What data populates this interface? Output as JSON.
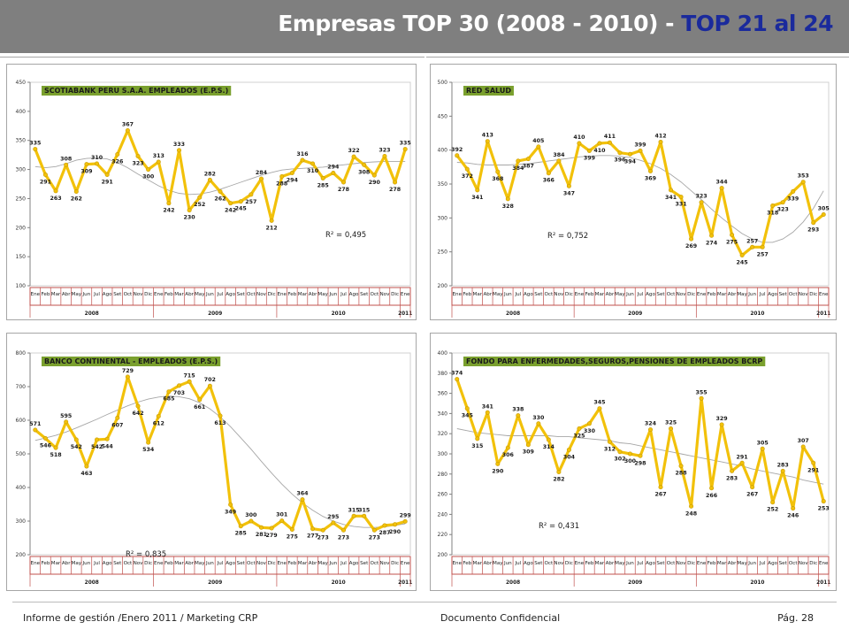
{
  "header": {
    "title_main": "Empresas TOP 30 (2008 - 2010) - ",
    "title_highlight": "TOP 21 al 24"
  },
  "footer": {
    "left": "Informe de gestión /Enero 2011 / Marketing CRP",
    "center": "Documento Confidencial",
    "right": "Pág. 28"
  },
  "colors": {
    "header_bg": "#7f7f7f",
    "title_highlight": "#1a2a9c",
    "line": "#f2c10a",
    "label_box": "#7aa02e",
    "month_axis": "#c0504d",
    "trend": "#a6a6a6"
  },
  "chart_data": [
    {
      "type": "line",
      "title": "SCOTIABANK PERU S.A.A. EMPLEADOS (E.P.S.)",
      "categories": [
        "Ene",
        "Feb",
        "Mar",
        "Abr",
        "May",
        "Jun",
        "Jul",
        "Ago",
        "Set",
        "Oct",
        "Nov",
        "Dic",
        "Ene",
        "Feb",
        "Mar",
        "Abr",
        "May",
        "Jun",
        "Jul",
        "Ago",
        "Set",
        "Oct",
        "Nov",
        "Dic",
        "Ene",
        "Feb",
        "Mar",
        "Abr",
        "May",
        "Jun",
        "Jul",
        "Ago",
        "Set",
        "Oct",
        "Nov",
        "Dic",
        "Ene"
      ],
      "groups": [
        {
          "label": "2008",
          "span": 12
        },
        {
          "label": "2009",
          "span": 12
        },
        {
          "label": "2010",
          "span": 12
        },
        {
          "label": "2011",
          "span": 1
        }
      ],
      "values": [
        335,
        291,
        263,
        308,
        262,
        309,
        310,
        291,
        326,
        367,
        323,
        300,
        313,
        242,
        333,
        230,
        252,
        282,
        262,
        242,
        245,
        257,
        284,
        212,
        288,
        294,
        316,
        310,
        285,
        294,
        278,
        322,
        308,
        290,
        323,
        278,
        335
      ],
      "ylim": [
        100,
        450
      ],
      "yticks": [
        100,
        150,
        200,
        250,
        300,
        350,
        400,
        450
      ],
      "r2": "R² = 0,495",
      "trend": [
        305,
        303,
        305,
        310,
        316,
        319,
        320,
        318,
        312,
        303,
        292,
        282,
        272,
        264,
        259,
        257,
        258,
        261,
        266,
        272,
        278,
        284,
        290,
        295,
        299,
        301,
        302,
        303,
        304,
        306,
        308,
        310,
        312,
        313,
        314,
        314,
        314
      ]
    },
    {
      "type": "line",
      "title": "RED SALUD",
      "categories": [
        "Ene",
        "Feb",
        "Mar",
        "Abr",
        "May",
        "Jun",
        "Jul",
        "Ago",
        "Set",
        "Oct",
        "Nov",
        "Dic",
        "Ene",
        "Feb",
        "Mar",
        "Abr",
        "May",
        "Jun",
        "Jul",
        "Ago",
        "Set",
        "Oct",
        "Nov",
        "Dic",
        "Ene",
        "Feb",
        "Mar",
        "Abr",
        "May",
        "Jun",
        "Jul",
        "Ago",
        "Set",
        "Oct",
        "Nov",
        "Dic",
        "Ene"
      ],
      "groups": [
        {
          "label": "2008",
          "span": 12
        },
        {
          "label": "2009",
          "span": 12
        },
        {
          "label": "2010",
          "span": 12
        },
        {
          "label": "2011",
          "span": 1
        }
      ],
      "values": [
        392,
        372,
        341,
        413,
        368,
        328,
        384,
        387,
        405,
        366,
        384,
        347,
        410,
        399,
        410,
        411,
        396,
        394,
        399,
        369,
        412,
        341,
        331,
        269,
        323,
        274,
        344,
        275,
        245,
        257,
        257,
        318,
        323,
        339,
        353,
        293,
        305
      ],
      "ylim": [
        200,
        500
      ],
      "yticks": [
        200,
        250,
        300,
        350,
        400,
        450,
        500
      ],
      "r2": "R² = 0,752",
      "trend": [
        382,
        381,
        379,
        378,
        378,
        378,
        379,
        380,
        382,
        384,
        386,
        388,
        390,
        391,
        392,
        392,
        391,
        389,
        385,
        380,
        373,
        364,
        353,
        340,
        327,
        313,
        300,
        288,
        277,
        269,
        264,
        264,
        269,
        279,
        294,
        314,
        340
      ]
    },
    {
      "type": "line",
      "title": "BANCO CONTINENTAL - EMPLEADOS (E.P.S.)",
      "categories": [
        "Ene",
        "Feb",
        "Mar",
        "Abr",
        "May",
        "Jun",
        "Jul",
        "Ago",
        "Set",
        "Oct",
        "Nov",
        "Dic",
        "Ene",
        "Feb",
        "Mar",
        "Abr",
        "May",
        "Jun",
        "Jul",
        "Ago",
        "Set",
        "Oct",
        "Nov",
        "Dic",
        "Ene",
        "Feb",
        "Mar",
        "Abr",
        "May",
        "Jun",
        "Jul",
        "Ago",
        "Set",
        "Oct",
        "Nov",
        "Dic",
        "Ene"
      ],
      "groups": [
        {
          "label": "2008",
          "span": 12
        },
        {
          "label": "2009",
          "span": 12
        },
        {
          "label": "2010",
          "span": 12
        },
        {
          "label": "2011",
          "span": 1
        }
      ],
      "values": [
        571,
        546,
        518,
        595,
        542,
        463,
        542,
        544,
        607,
        729,
        642,
        534,
        612,
        685,
        703,
        715,
        661,
        702,
        613,
        349,
        285,
        300,
        281,
        279,
        301,
        275,
        364,
        277,
        273,
        295,
        273,
        315,
        315,
        273,
        287,
        290,
        299
      ],
      "ylim": [
        200,
        800
      ],
      "yticks": [
        200,
        300,
        400,
        500,
        600,
        700,
        800
      ],
      "r2": "R² = 0,835",
      "trend": [
        540,
        547,
        555,
        565,
        577,
        590,
        603,
        617,
        630,
        643,
        654,
        663,
        669,
        672,
        670,
        664,
        652,
        634,
        610,
        581,
        548,
        514,
        478,
        443,
        410,
        380,
        354,
        332,
        314,
        300,
        290,
        284,
        281,
        281,
        283,
        287,
        292
      ]
    },
    {
      "type": "line",
      "title": "FONDO PARA ENFERMEDADES,SEGUROS,PENSIONES DE EMPLEADOS BCRP",
      "categories": [
        "Ene",
        "Feb",
        "Mar",
        "Abr",
        "May",
        "Jun",
        "Jul",
        "Ago",
        "Set",
        "Oct",
        "Nov",
        "Dic",
        "Ene",
        "Feb",
        "Mar",
        "Abr",
        "May",
        "Jun",
        "Jul",
        "Ago",
        "Set",
        "Oct",
        "Nov",
        "Dic",
        "Ene",
        "Feb",
        "Mar",
        "Abr",
        "May",
        "Jun",
        "Jul",
        "Ago",
        "Set",
        "Oct",
        "Nov",
        "Dic",
        "Ene"
      ],
      "groups": [
        {
          "label": "2008",
          "span": 12
        },
        {
          "label": "2009",
          "span": 12
        },
        {
          "label": "2010",
          "span": 12
        },
        {
          "label": "2011",
          "span": 1
        }
      ],
      "values": [
        374,
        345,
        315,
        341,
        290,
        306,
        338,
        309,
        330,
        314,
        282,
        304,
        325,
        330,
        345,
        312,
        302,
        300,
        298,
        324,
        267,
        325,
        288,
        248,
        355,
        266,
        329,
        283,
        291,
        267,
        305,
        252,
        283,
        246,
        307,
        291,
        253
      ],
      "ylim": [
        200,
        400
      ],
      "yticks": [
        200,
        220,
        240,
        260,
        280,
        300,
        320,
        340,
        360,
        380,
        400
      ],
      "r2": "R² = 0,431",
      "trend": [
        325,
        323,
        321,
        320,
        319,
        318,
        318,
        318,
        318,
        318,
        317,
        317,
        316,
        315,
        314,
        313,
        311,
        310,
        308,
        306,
        304,
        302,
        300,
        298,
        296,
        294,
        292,
        290,
        288,
        285,
        283,
        281,
        279,
        277,
        274,
        272,
        270
      ]
    }
  ]
}
